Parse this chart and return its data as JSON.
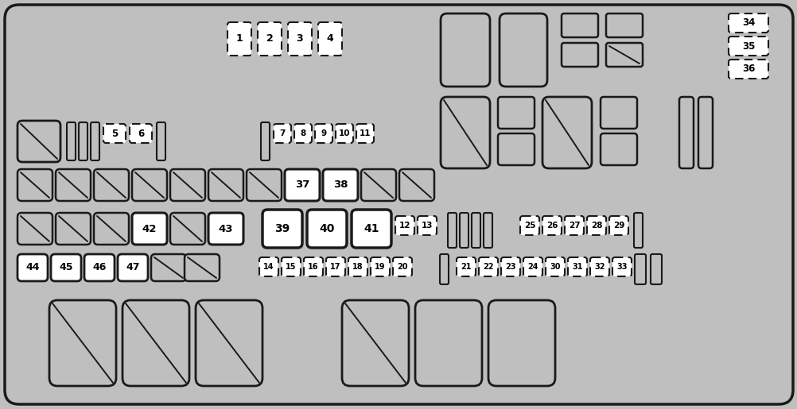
{
  "bg": "#c0bfc0",
  "border": "#1a1a1a",
  "white": "#ffffff",
  "fig_w": 10.03,
  "fig_h": 5.15,
  "dpi": 100
}
